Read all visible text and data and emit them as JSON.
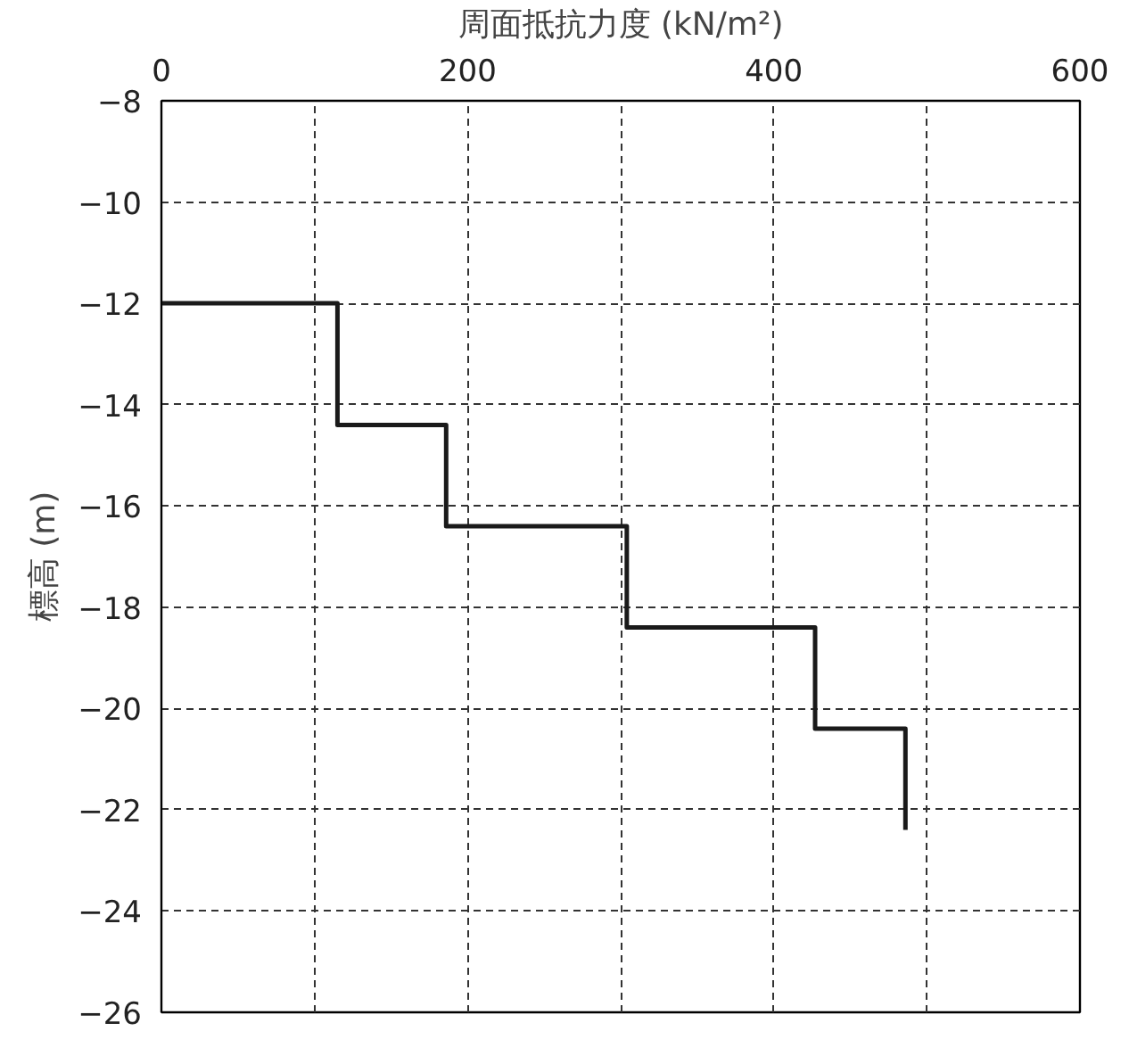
{
  "chart_data": {
    "type": "line",
    "xlabel": "周面抵抗力度 (kN/m²)",
    "ylabel": "標高 (m)",
    "x": [
      0,
      115,
      115,
      186,
      186,
      304,
      304,
      427,
      427,
      486,
      486
    ],
    "series": [
      {
        "color": "#1a1a1a",
        "values": [
          -12,
          -12,
          -14.4,
          -14.4,
          -16.4,
          -16.4,
          -18.4,
          -18.4,
          -20.4,
          -20.4,
          -22.4
        ]
      }
    ],
    "xlim": [
      0,
      600
    ],
    "xticks": [
      0,
      {
        "value": 100,
        "label": null
      },
      200,
      {
        "value": 300,
        "label": null
      },
      400,
      {
        "value": 500,
        "label": null
      },
      600
    ],
    "ylim": [
      -26,
      -8
    ],
    "yticks": [
      -8,
      -10,
      -12,
      -14,
      -16,
      -18,
      -20,
      -22,
      -24,
      -26
    ],
    "grid": true,
    "line_style": "solid",
    "marker": "none"
  }
}
